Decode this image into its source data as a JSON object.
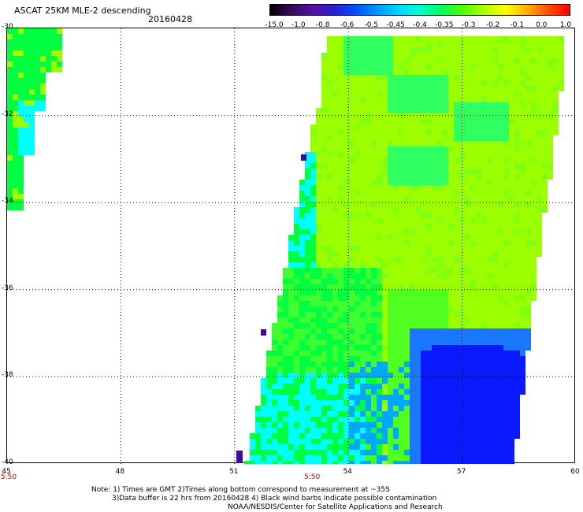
{
  "title": "ASCAT 25KM MLE-2 descending",
  "date": "20160428",
  "colorbar": {
    "labels": [
      "-15.0",
      "-1.0",
      "-0.8",
      "-0.6",
      "-0.5",
      "-0.45",
      "-0.4",
      "-0.35",
      "-0.3",
      "-0.2",
      "-0.1",
      "0.0",
      "1.0"
    ],
    "colors": [
      "#000000",
      "#3a0a5a",
      "#5a10a0",
      "#2a20d0",
      "#0050ff",
      "#0096ff",
      "#00d8ff",
      "#00ffd0",
      "#00ff60",
      "#50ff00",
      "#b0ff00",
      "#ffff00",
      "#ffb000",
      "#ff5000",
      "#ff0000"
    ]
  },
  "map": {
    "lon_ticks": [
      "45",
      "48",
      "51",
      "54",
      "57",
      "60"
    ],
    "lat_ticks": [
      "-30",
      "-32",
      "-34",
      "-36",
      "-38",
      "-40"
    ],
    "lon_range": [
      45,
      60
    ],
    "lat_range": [
      -30,
      -40
    ],
    "times": [
      "5:50",
      "5:50"
    ],
    "time_lons": [
      45,
      53
    ]
  },
  "notes": {
    "line1": "Note: 1) Times are GMT 2)Times along bottom correspond to measurement at ~35S",
    "line2": "3)Data buffer is 22 hrs from 20160428 4) Black wind barbs indicate possible contamination",
    "line3": "NOAA/NESDIS/Center for Satellite Applications and Research"
  },
  "legend_colors": {
    "land": "#ffffff",
    "lime": "#9cff00",
    "green": "#00ff40",
    "cyan": "#00ffff",
    "blue": "#0a1aff",
    "purple": "#3d0a9a"
  }
}
